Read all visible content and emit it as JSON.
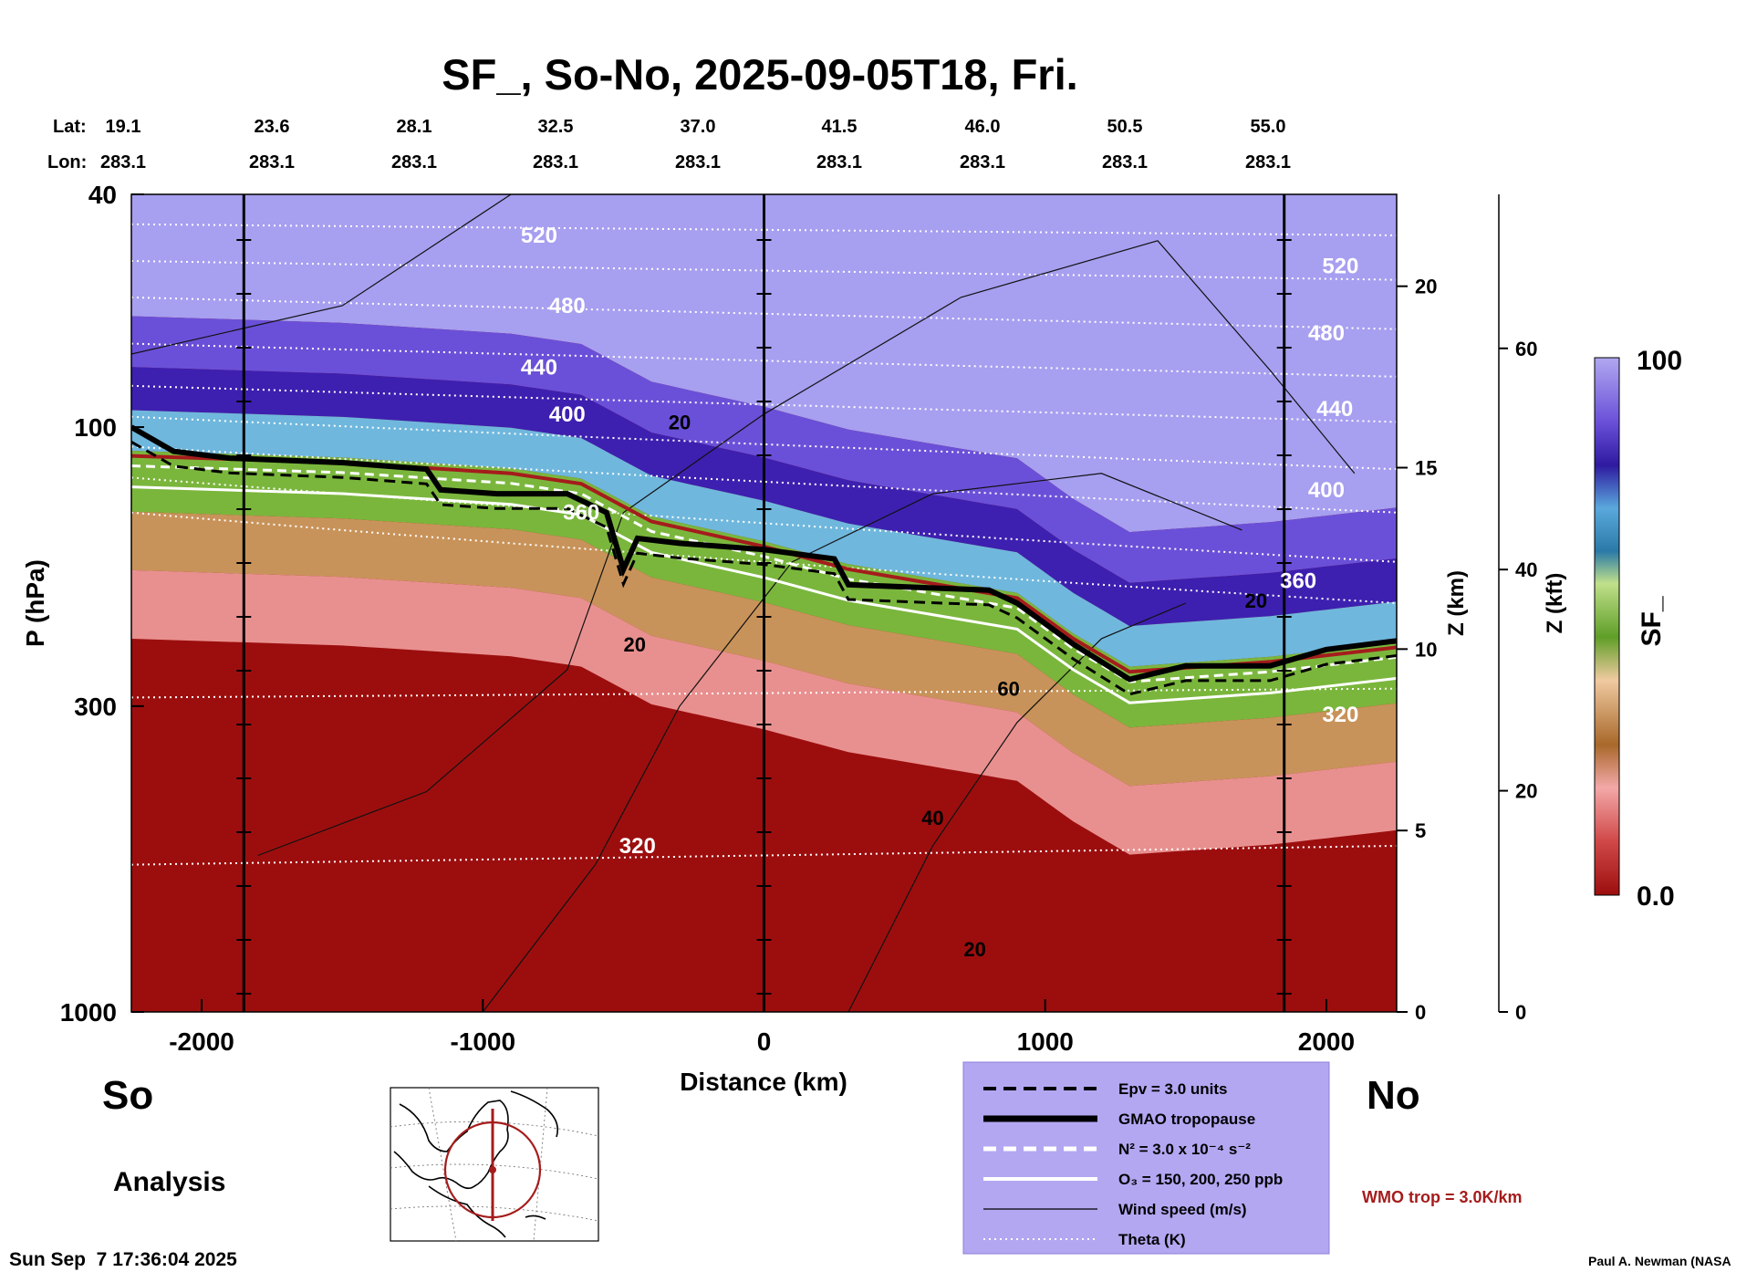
{
  "chart_data": {
    "type": "contour-cross-section",
    "title": "SF_, So-No, 2025-09-05T18, Fri.",
    "xlabel": "Distance (km)",
    "ylabel": "P (hPa)",
    "y2label": "Z (km)",
    "y3label": "Z (kft)",
    "colorbar_label": "SF_",
    "xlim": [
      -2250,
      2250
    ],
    "ylim": [
      1000,
      40
    ],
    "yscale": "log",
    "x_ticks": [
      -2000,
      -1000,
      0,
      1000,
      2000
    ],
    "x_tick_labels": [
      "-2000",
      "-1000",
      "0",
      "1000",
      "2000"
    ],
    "p_ticks": [
      40,
      100,
      300,
      1000
    ],
    "p_tick_labels": [
      "40",
      "100",
      "300",
      "1000"
    ],
    "z_km_ticks": [
      0,
      5,
      10,
      15,
      20
    ],
    "z_km_tick_labels": [
      "0",
      "5",
      "10",
      "15",
      "20"
    ],
    "z_kft_ticks": [
      0,
      20,
      40,
      60
    ],
    "z_kft_tick_labels": [
      "0",
      "20",
      "40",
      "60"
    ],
    "lat_label": "Lat:",
    "lon_label": "Lon:",
    "lat_ticks": [
      "19.1",
      "23.6",
      "28.1",
      "32.5",
      "37.0",
      "41.5",
      "46.0",
      "50.5",
      "55.0"
    ],
    "lon_ticks": [
      "283.1",
      "283.1",
      "283.1",
      "283.1",
      "283.1",
      "283.1",
      "283.1",
      "283.1",
      "283.1"
    ],
    "colorbar_min_label": "0.0",
    "colorbar_max_label": "100",
    "colorbar_range": [
      0,
      100
    ],
    "vertical_lines_km": [
      -1850,
      0,
      1850
    ],
    "tropopause_gmao": [
      {
        "x": -2250,
        "p": 100
      },
      {
        "x": -2100,
        "p": 110
      },
      {
        "x": -1900,
        "p": 113
      },
      {
        "x": -1500,
        "p": 115
      },
      {
        "x": -1200,
        "p": 118
      },
      {
        "x": -1150,
        "p": 128
      },
      {
        "x": -950,
        "p": 130
      },
      {
        "x": -700,
        "p": 130
      },
      {
        "x": -560,
        "p": 140
      },
      {
        "x": -500,
        "p": 175
      },
      {
        "x": -450,
        "p": 155
      },
      {
        "x": -300,
        "p": 158
      },
      {
        "x": 0,
        "p": 162
      },
      {
        "x": 250,
        "p": 168
      },
      {
        "x": 300,
        "p": 186
      },
      {
        "x": 800,
        "p": 190
      },
      {
        "x": 900,
        "p": 200
      },
      {
        "x": 1100,
        "p": 235
      },
      {
        "x": 1300,
        "p": 270
      },
      {
        "x": 1500,
        "p": 256
      },
      {
        "x": 1800,
        "p": 256
      },
      {
        "x": 2000,
        "p": 240
      },
      {
        "x": 2250,
        "p": 232
      }
    ],
    "wmo_tropopause": [
      {
        "x": -2250,
        "p": 112
      },
      {
        "x": -1500,
        "p": 115
      },
      {
        "x": -900,
        "p": 120
      },
      {
        "x": -650,
        "p": 125
      },
      {
        "x": -400,
        "p": 145
      },
      {
        "x": 0,
        "p": 160
      },
      {
        "x": 300,
        "p": 175
      },
      {
        "x": 900,
        "p": 196
      },
      {
        "x": 1100,
        "p": 230
      },
      {
        "x": 1300,
        "p": 262
      },
      {
        "x": 1800,
        "p": 252
      },
      {
        "x": 2250,
        "p": 238
      }
    ],
    "theta_labels": [
      {
        "x": -800,
        "p": 47,
        "text": "520"
      },
      {
        "x": 2050,
        "p": 53,
        "text": "520"
      },
      {
        "x": -700,
        "p": 62,
        "text": "480"
      },
      {
        "x": 2000,
        "p": 69,
        "text": "480"
      },
      {
        "x": -800,
        "p": 79,
        "text": "440"
      },
      {
        "x": 2030,
        "p": 93,
        "text": "440"
      },
      {
        "x": -700,
        "p": 95,
        "text": "400"
      },
      {
        "x": 2000,
        "p": 128,
        "text": "400"
      },
      {
        "x": 1900,
        "p": 183,
        "text": "360"
      },
      {
        "x": -650,
        "p": 140,
        "text": "360"
      },
      {
        "x": 2050,
        "p": 310,
        "text": "320"
      },
      {
        "x": -450,
        "p": 520,
        "text": "320"
      }
    ],
    "wind_labels": [
      {
        "x": -300,
        "p": 98,
        "text": "20"
      },
      {
        "x": 1750,
        "p": 198,
        "text": "20"
      },
      {
        "x": -460,
        "p": 235,
        "text": "20"
      },
      {
        "x": 870,
        "p": 280,
        "text": "60"
      },
      {
        "x": 600,
        "p": 465,
        "text": "40"
      },
      {
        "x": 750,
        "p": 780,
        "text": "20"
      }
    ],
    "legend": [
      {
        "label": "Epv = 3.0 units",
        "style": "black-dashed"
      },
      {
        "label": "GMAO tropopause",
        "style": "black-thick"
      },
      {
        "label": "N² = 3.0 x 10⁻⁴ s⁻²",
        "style": "white-dashed"
      },
      {
        "label": "O₃ = 150, 200, 250 ppb",
        "style": "white-solid"
      },
      {
        "label": "Wind speed (m/s)",
        "style": "black-thin"
      },
      {
        "label": "Theta (K)",
        "style": "white-dotted"
      }
    ]
  },
  "labels": {
    "south": "So",
    "north": "No",
    "analysis": "Analysis",
    "wmo": "WMO trop = 3.0K/km",
    "timestamp": "Sun Sep  7 17:36:04 2025",
    "credit": "Paul A. Newman (NASA"
  },
  "colors": {
    "stratosphere_top": "#a79ff0",
    "deep_blue": "#3d20b0",
    "light_blue": "#6fb7dd",
    "green": "#7ab63c",
    "tan": "#c8935a",
    "pink": "#e8908f",
    "dark_red": "#9c0e0e",
    "wmo_line": "#a51c1c",
    "legend_bg": "#b3a7f2"
  }
}
